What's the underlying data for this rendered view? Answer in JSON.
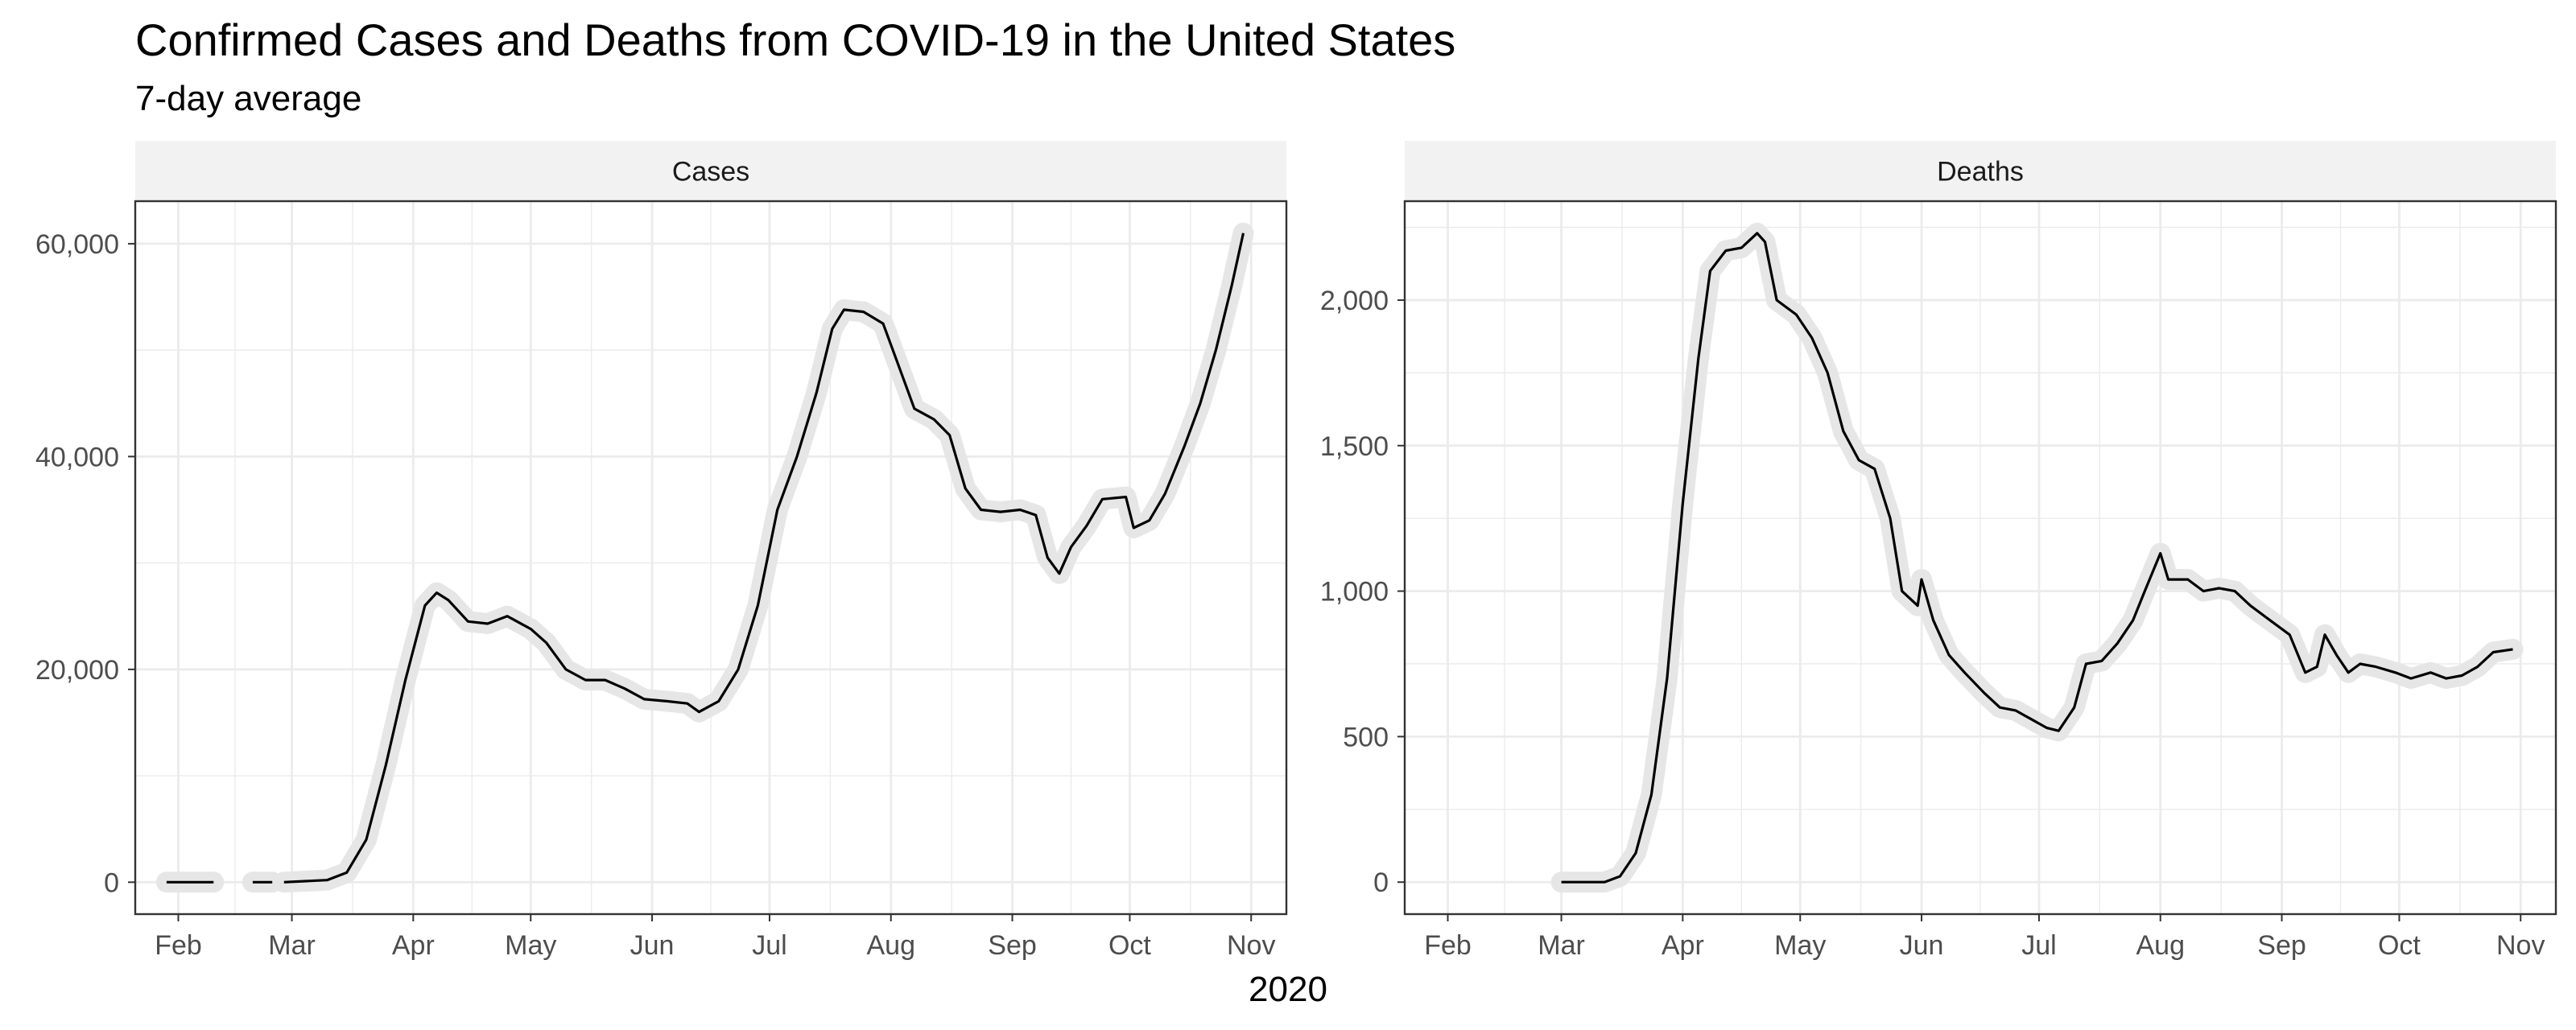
{
  "chart_data": {
    "type": "line",
    "title": "Confirmed Cases and Deaths from COVID-19 in the United States",
    "subtitle": "7-day average",
    "xlabel": "2020",
    "grid": true,
    "line_color": "#000000",
    "highlight_color": "#e6e6e6",
    "strip_color": "#f2f2f2",
    "grid_color": "#ebebeb",
    "panels": [
      {
        "name": "Cases",
        "x_range": [
          "2020-01-21",
          "2020-11-10"
        ],
        "x_ticks": [
          {
            "date": "2020-02-01",
            "label": "Feb"
          },
          {
            "date": "2020-03-01",
            "label": "Mar"
          },
          {
            "date": "2020-04-01",
            "label": "Apr"
          },
          {
            "date": "2020-05-01",
            "label": "May"
          },
          {
            "date": "2020-06-01",
            "label": "Jun"
          },
          {
            "date": "2020-07-01",
            "label": "Jul"
          },
          {
            "date": "2020-08-01",
            "label": "Aug"
          },
          {
            "date": "2020-09-01",
            "label": "Sep"
          },
          {
            "date": "2020-10-01",
            "label": "Oct"
          },
          {
            "date": "2020-11-01",
            "label": "Nov"
          }
        ],
        "ylim": [
          -3000,
          64000
        ],
        "y_ticks": [
          {
            "value": 0,
            "label": "0"
          },
          {
            "value": 20000,
            "label": "20,000"
          },
          {
            "value": 40000,
            "label": "40,000"
          },
          {
            "value": 60000,
            "label": "60,000"
          }
        ],
        "segments": [
          [
            [
              "2020-01-29",
              0
            ],
            [
              "2020-02-10",
              0
            ]
          ],
          [
            [
              "2020-02-20",
              0
            ],
            [
              "2020-02-25",
              0
            ]
          ],
          [
            [
              "2020-02-28",
              0
            ],
            [
              "2020-03-10",
              200
            ],
            [
              "2020-03-15",
              900
            ],
            [
              "2020-03-20",
              4000
            ],
            [
              "2020-03-25",
              11000
            ],
            [
              "2020-03-30",
              19000
            ],
            [
              "2020-04-04",
              26000
            ],
            [
              "2020-04-07",
              27200
            ],
            [
              "2020-04-10",
              26500
            ],
            [
              "2020-04-15",
              24500
            ],
            [
              "2020-04-20",
              24300
            ],
            [
              "2020-04-25",
              25000
            ],
            [
              "2020-05-01",
              23800
            ],
            [
              "2020-05-05",
              22500
            ],
            [
              "2020-05-10",
              20000
            ],
            [
              "2020-05-15",
              19000
            ],
            [
              "2020-05-20",
              19000
            ],
            [
              "2020-05-25",
              18200
            ],
            [
              "2020-05-30",
              17200
            ],
            [
              "2020-06-05",
              17000
            ],
            [
              "2020-06-10",
              16800
            ],
            [
              "2020-06-13",
              16000
            ],
            [
              "2020-06-18",
              17000
            ],
            [
              "2020-06-23",
              20000
            ],
            [
              "2020-06-28",
              26000
            ],
            [
              "2020-07-03",
              35000
            ],
            [
              "2020-07-08",
              40000
            ],
            [
              "2020-07-13",
              46000
            ],
            [
              "2020-07-17",
              52000
            ],
            [
              "2020-07-20",
              53800
            ],
            [
              "2020-07-25",
              53600
            ],
            [
              "2020-07-30",
              52500
            ],
            [
              "2020-08-03",
              48500
            ],
            [
              "2020-08-07",
              44500
            ],
            [
              "2020-08-12",
              43500
            ],
            [
              "2020-08-16",
              42000
            ],
            [
              "2020-08-20",
              37000
            ],
            [
              "2020-08-24",
              35000
            ],
            [
              "2020-08-29",
              34800
            ],
            [
              "2020-09-03",
              35000
            ],
            [
              "2020-09-07",
              34500
            ],
            [
              "2020-09-10",
              30500
            ],
            [
              "2020-09-13",
              29000
            ],
            [
              "2020-09-16",
              31500
            ],
            [
              "2020-09-20",
              33500
            ],
            [
              "2020-09-24",
              36000
            ],
            [
              "2020-09-30",
              36200
            ],
            [
              "2020-10-02",
              33300
            ],
            [
              "2020-10-06",
              34000
            ],
            [
              "2020-10-10",
              36500
            ],
            [
              "2020-10-15",
              41000
            ],
            [
              "2020-10-19",
              45000
            ],
            [
              "2020-10-23",
              50000
            ],
            [
              "2020-10-27",
              56000
            ],
            [
              "2020-10-30",
              61000
            ]
          ]
        ]
      },
      {
        "name": "Deaths",
        "x_range": [
          "2020-01-21",
          "2020-11-10"
        ],
        "x_ticks": [
          {
            "date": "2020-02-01",
            "label": "Feb"
          },
          {
            "date": "2020-03-01",
            "label": "Mar"
          },
          {
            "date": "2020-04-01",
            "label": "Apr"
          },
          {
            "date": "2020-05-01",
            "label": "May"
          },
          {
            "date": "2020-06-01",
            "label": "Jun"
          },
          {
            "date": "2020-07-01",
            "label": "Jul"
          },
          {
            "date": "2020-08-01",
            "label": "Aug"
          },
          {
            "date": "2020-09-01",
            "label": "Sep"
          },
          {
            "date": "2020-10-01",
            "label": "Oct"
          },
          {
            "date": "2020-11-01",
            "label": "Nov"
          }
        ],
        "ylim": [
          -110,
          2340
        ],
        "y_ticks": [
          {
            "value": 0,
            "label": "0"
          },
          {
            "value": 500,
            "label": "500"
          },
          {
            "value": 1000,
            "label": "1,000"
          },
          {
            "value": 1500,
            "label": "1,500"
          },
          {
            "value": 2000,
            "label": "2,000"
          }
        ],
        "segments": [
          [
            [
              "2020-03-01",
              0
            ],
            [
              "2020-03-12",
              0
            ],
            [
              "2020-03-16",
              20
            ],
            [
              "2020-03-20",
              100
            ],
            [
              "2020-03-24",
              300
            ],
            [
              "2020-03-28",
              700
            ],
            [
              "2020-04-01",
              1300
            ],
            [
              "2020-04-05",
              1800
            ],
            [
              "2020-04-08",
              2100
            ],
            [
              "2020-04-12",
              2170
            ],
            [
              "2020-04-16",
              2180
            ],
            [
              "2020-04-20",
              2230
            ],
            [
              "2020-04-22",
              2200
            ],
            [
              "2020-04-25",
              2000
            ],
            [
              "2020-04-30",
              1950
            ],
            [
              "2020-05-04",
              1870
            ],
            [
              "2020-05-08",
              1750
            ],
            [
              "2020-05-12",
              1550
            ],
            [
              "2020-05-16",
              1450
            ],
            [
              "2020-05-20",
              1420
            ],
            [
              "2020-05-24",
              1250
            ],
            [
              "2020-05-27",
              1000
            ],
            [
              "2020-05-31",
              950
            ],
            [
              "2020-06-01",
              1040
            ],
            [
              "2020-06-04",
              900
            ],
            [
              "2020-06-08",
              780
            ],
            [
              "2020-06-12",
              720
            ],
            [
              "2020-06-17",
              650
            ],
            [
              "2020-06-21",
              600
            ],
            [
              "2020-06-25",
              590
            ],
            [
              "2020-06-29",
              560
            ],
            [
              "2020-07-03",
              530
            ],
            [
              "2020-07-06",
              520
            ],
            [
              "2020-07-10",
              600
            ],
            [
              "2020-07-13",
              750
            ],
            [
              "2020-07-17",
              760
            ],
            [
              "2020-07-21",
              820
            ],
            [
              "2020-07-25",
              900
            ],
            [
              "2020-07-28",
              1000
            ],
            [
              "2020-08-01",
              1130
            ],
            [
              "2020-08-03",
              1040
            ],
            [
              "2020-08-08",
              1040
            ],
            [
              "2020-08-12",
              1000
            ],
            [
              "2020-08-16",
              1010
            ],
            [
              "2020-08-20",
              1000
            ],
            [
              "2020-08-24",
              950
            ],
            [
              "2020-08-29",
              900
            ],
            [
              "2020-09-03",
              850
            ],
            [
              "2020-09-07",
              720
            ],
            [
              "2020-09-10",
              740
            ],
            [
              "2020-09-12",
              850
            ],
            [
              "2020-09-15",
              780
            ],
            [
              "2020-09-18",
              720
            ],
            [
              "2020-09-21",
              750
            ],
            [
              "2020-09-25",
              740
            ],
            [
              "2020-09-30",
              720
            ],
            [
              "2020-10-04",
              700
            ],
            [
              "2020-10-09",
              720
            ],
            [
              "2020-10-13",
              700
            ],
            [
              "2020-10-17",
              710
            ],
            [
              "2020-10-21",
              740
            ],
            [
              "2020-10-25",
              790
            ],
            [
              "2020-10-30",
              800
            ]
          ]
        ]
      }
    ]
  }
}
